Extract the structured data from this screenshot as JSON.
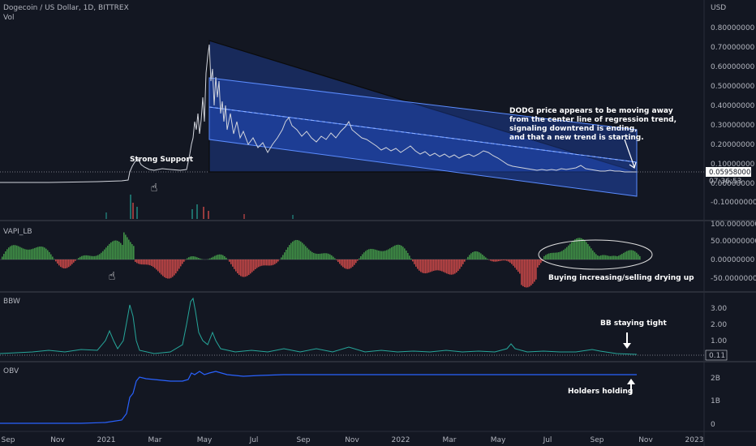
{
  "header": {
    "symbol": "Dogecoin / US Dollar, 1D, BITTREX",
    "vol_label": "Vol"
  },
  "price_axis": {
    "currency": "USD",
    "ticks": [
      "0.80000000",
      "0.70000000",
      "0.60000000",
      "0.50000000",
      "0.40000000",
      "0.30000000",
      "0.20000000",
      "0.10000000",
      "0.00000000",
      "-0.10000000"
    ],
    "last_price": "0.05958000",
    "countdown": "07:36:53"
  },
  "annotations": {
    "strong_support": "Strong Support",
    "dodg_note": [
      "DODG price appears to be moving away",
      "from the center line of regression trend,",
      "signaling downtrend is ending,",
      "and that a new trend is starting."
    ],
    "vapi_note": "Buying increasing/selling drying up",
    "bbw_note": "BB staying tight",
    "obv_note": "Holders holding"
  },
  "panes": {
    "vapi": {
      "title": "VAPI_LB",
      "ticks": [
        "100.00000000",
        "50.00000000",
        "0.00000000",
        "-50.00000000"
      ]
    },
    "bbw": {
      "title": "BBW",
      "ticks": [
        "3.00",
        "2.00",
        "1.00"
      ],
      "last_value": "0.11"
    },
    "obv": {
      "title": "OBV",
      "ticks": [
        "2B",
        "1B",
        "0"
      ]
    }
  },
  "time_axis": [
    "Sep",
    "Nov",
    "2021",
    "Mar",
    "May",
    "Jul",
    "Sep",
    "Nov",
    "2022",
    "Mar",
    "May",
    "Jul",
    "Sep",
    "Nov",
    "2023"
  ],
  "colors": {
    "background": "#131722",
    "price_line": "#d1d4dc",
    "channel_fill": "#2962ff",
    "vapi_up": "#4caf50",
    "vapi_down": "#ef5350",
    "bbw_line": "#26a69a",
    "obv_line": "#2962ff"
  },
  "icons": [
    "pointing-hand-icon",
    "pointing-hand-icon",
    "arrow-down-icon",
    "arrow-down-icon",
    "arrow-up-icon"
  ]
}
